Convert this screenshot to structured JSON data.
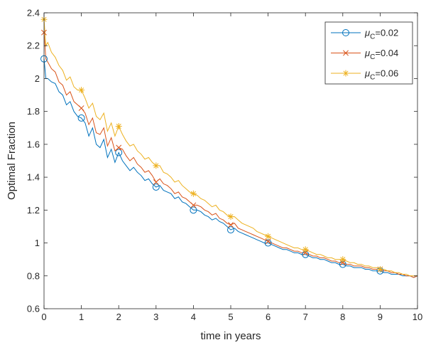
{
  "chart_data": {
    "type": "line",
    "title": "",
    "xlabel": "time in years",
    "ylabel": "Optimal Fraction",
    "xlim": [
      0,
      10
    ],
    "ylim": [
      0.6,
      2.4
    ],
    "x_ticks": [
      0,
      1,
      2,
      3,
      4,
      5,
      6,
      7,
      8,
      9,
      10
    ],
    "y_ticks": [
      "0.6",
      "0.8",
      "1",
      "1.2",
      "1.4",
      "1.6",
      "1.8",
      "2",
      "2.2",
      "2.4"
    ],
    "grid": false,
    "legend_position": "top-right",
    "series": [
      {
        "name": "μC=0.02",
        "legend_mu": "μ",
        "legend_sub": "C",
        "legend_value": "=0.02",
        "color": "#0072BD",
        "marker": "circle",
        "x": [
          0,
          0.05,
          0.1,
          0.2,
          0.3,
          0.4,
          0.5,
          0.6,
          0.7,
          0.8,
          0.9,
          1,
          1.1,
          1.2,
          1.3,
          1.4,
          1.5,
          1.6,
          1.7,
          1.8,
          1.9,
          2,
          2.1,
          2.2,
          2.3,
          2.4,
          2.5,
          2.6,
          2.7,
          2.8,
          2.9,
          3,
          3.1,
          3.2,
          3.3,
          3.4,
          3.5,
          3.6,
          3.7,
          3.8,
          3.9,
          4,
          4.1,
          4.2,
          4.3,
          4.4,
          4.5,
          4.6,
          4.7,
          4.8,
          4.9,
          5,
          5.1,
          5.2,
          5.3,
          5.4,
          5.5,
          5.6,
          5.7,
          5.8,
          5.9,
          6,
          6.1,
          6.2,
          6.3,
          6.4,
          6.5,
          6.6,
          6.7,
          6.8,
          6.9,
          7,
          7.1,
          7.2,
          7.3,
          7.4,
          7.5,
          7.6,
          7.7,
          7.8,
          7.9,
          8,
          8.1,
          8.2,
          8.3,
          8.4,
          8.5,
          8.6,
          8.7,
          8.8,
          8.9,
          9,
          9.1,
          9.2,
          9.3,
          9.4,
          9.5,
          9.6,
          9.7,
          9.8,
          9.9,
          10
        ],
        "y": [
          2.12,
          2.0,
          2.0,
          1.98,
          1.97,
          1.92,
          1.9,
          1.84,
          1.86,
          1.8,
          1.77,
          1.76,
          1.73,
          1.65,
          1.7,
          1.6,
          1.58,
          1.63,
          1.52,
          1.57,
          1.49,
          1.55,
          1.5,
          1.47,
          1.44,
          1.46,
          1.43,
          1.41,
          1.38,
          1.39,
          1.36,
          1.34,
          1.35,
          1.32,
          1.31,
          1.3,
          1.27,
          1.28,
          1.25,
          1.24,
          1.22,
          1.2,
          1.2,
          1.19,
          1.17,
          1.16,
          1.14,
          1.15,
          1.13,
          1.12,
          1.1,
          1.08,
          1.09,
          1.07,
          1.06,
          1.05,
          1.04,
          1.03,
          1.02,
          1.01,
          1.0,
          1.0,
          0.99,
          0.98,
          0.97,
          0.96,
          0.96,
          0.95,
          0.94,
          0.94,
          0.93,
          0.93,
          0.92,
          0.91,
          0.91,
          0.9,
          0.9,
          0.89,
          0.88,
          0.88,
          0.87,
          0.87,
          0.86,
          0.86,
          0.85,
          0.85,
          0.85,
          0.84,
          0.84,
          0.83,
          0.83,
          0.83,
          0.82,
          0.82,
          0.81,
          0.81,
          0.81,
          0.8,
          0.8,
          0.8,
          0.79,
          0.8
        ]
      },
      {
        "name": "μC=0.04",
        "legend_mu": "μ",
        "legend_sub": "C",
        "legend_value": "=0.04",
        "color": "#D95319",
        "marker": "x",
        "x": [
          0,
          0.05,
          0.1,
          0.2,
          0.3,
          0.4,
          0.5,
          0.6,
          0.7,
          0.8,
          0.9,
          1,
          1.1,
          1.2,
          1.3,
          1.4,
          1.5,
          1.6,
          1.7,
          1.8,
          1.9,
          2,
          2.1,
          2.2,
          2.3,
          2.4,
          2.5,
          2.6,
          2.7,
          2.8,
          2.9,
          3,
          3.1,
          3.2,
          3.3,
          3.4,
          3.5,
          3.6,
          3.7,
          3.8,
          3.9,
          4,
          4.1,
          4.2,
          4.3,
          4.4,
          4.5,
          4.6,
          4.7,
          4.8,
          4.9,
          5,
          5.1,
          5.2,
          5.3,
          5.4,
          5.5,
          5.6,
          5.7,
          5.8,
          5.9,
          6,
          6.1,
          6.2,
          6.3,
          6.4,
          6.5,
          6.6,
          6.7,
          6.8,
          6.9,
          7,
          7.1,
          7.2,
          7.3,
          7.4,
          7.5,
          7.6,
          7.7,
          7.8,
          7.9,
          8,
          8.1,
          8.2,
          8.3,
          8.4,
          8.5,
          8.6,
          8.7,
          8.8,
          8.9,
          9,
          9.1,
          9.2,
          9.3,
          9.4,
          9.5,
          9.6,
          9.7,
          9.8,
          9.9,
          10
        ],
        "y": [
          2.28,
          2.12,
          2.1,
          2.06,
          2.04,
          1.98,
          1.96,
          1.9,
          1.92,
          1.86,
          1.84,
          1.82,
          1.79,
          1.72,
          1.76,
          1.67,
          1.66,
          1.7,
          1.59,
          1.64,
          1.56,
          1.58,
          1.57,
          1.53,
          1.5,
          1.52,
          1.48,
          1.46,
          1.43,
          1.44,
          1.41,
          1.37,
          1.39,
          1.36,
          1.35,
          1.33,
          1.3,
          1.31,
          1.28,
          1.27,
          1.25,
          1.23,
          1.23,
          1.22,
          1.2,
          1.19,
          1.17,
          1.18,
          1.15,
          1.14,
          1.12,
          1.11,
          1.12,
          1.09,
          1.08,
          1.07,
          1.06,
          1.05,
          1.04,
          1.03,
          1.02,
          1.01,
          1.0,
          0.99,
          0.98,
          0.97,
          0.97,
          0.96,
          0.95,
          0.95,
          0.94,
          0.94,
          0.93,
          0.92,
          0.92,
          0.91,
          0.91,
          0.9,
          0.89,
          0.89,
          0.88,
          0.88,
          0.87,
          0.87,
          0.86,
          0.86,
          0.86,
          0.85,
          0.85,
          0.84,
          0.84,
          0.84,
          0.83,
          0.83,
          0.82,
          0.82,
          0.81,
          0.81,
          0.8,
          0.8,
          0.79,
          0.8
        ]
      },
      {
        "name": "μC=0.06",
        "legend_mu": "μ",
        "legend_sub": "C",
        "legend_value": "=0.06",
        "color": "#EDB120",
        "marker": "asterisk",
        "x": [
          0,
          0.05,
          0.1,
          0.2,
          0.3,
          0.4,
          0.5,
          0.6,
          0.7,
          0.8,
          0.9,
          1,
          1.1,
          1.2,
          1.3,
          1.4,
          1.5,
          1.6,
          1.7,
          1.8,
          1.9,
          2,
          2.1,
          2.2,
          2.3,
          2.4,
          2.5,
          2.6,
          2.7,
          2.8,
          2.9,
          3,
          3.1,
          3.2,
          3.3,
          3.4,
          3.5,
          3.6,
          3.7,
          3.8,
          3.9,
          4,
          4.1,
          4.2,
          4.3,
          4.4,
          4.5,
          4.6,
          4.7,
          4.8,
          4.9,
          5,
          5.1,
          5.2,
          5.3,
          5.4,
          5.5,
          5.6,
          5.7,
          5.8,
          5.9,
          6,
          6.1,
          6.2,
          6.3,
          6.4,
          6.5,
          6.6,
          6.7,
          6.8,
          6.9,
          7,
          7.1,
          7.2,
          7.3,
          7.4,
          7.5,
          7.6,
          7.7,
          7.8,
          7.9,
          8,
          8.1,
          8.2,
          8.3,
          8.4,
          8.5,
          8.6,
          8.7,
          8.8,
          8.9,
          9,
          9.1,
          9.2,
          9.3,
          9.4,
          9.5,
          9.6,
          9.7,
          9.8,
          9.9,
          10
        ],
        "y": [
          2.36,
          2.2,
          2.22,
          2.16,
          2.13,
          2.08,
          2.05,
          1.99,
          2.01,
          1.95,
          1.93,
          1.93,
          1.88,
          1.82,
          1.85,
          1.77,
          1.75,
          1.79,
          1.68,
          1.73,
          1.65,
          1.71,
          1.66,
          1.62,
          1.59,
          1.6,
          1.56,
          1.54,
          1.51,
          1.52,
          1.49,
          1.47,
          1.47,
          1.43,
          1.42,
          1.4,
          1.37,
          1.38,
          1.35,
          1.33,
          1.31,
          1.3,
          1.29,
          1.27,
          1.26,
          1.24,
          1.22,
          1.23,
          1.2,
          1.19,
          1.17,
          1.16,
          1.16,
          1.14,
          1.12,
          1.11,
          1.1,
          1.09,
          1.07,
          1.06,
          1.05,
          1.04,
          1.03,
          1.02,
          1.01,
          1.0,
          0.99,
          0.98,
          0.97,
          0.97,
          0.96,
          0.96,
          0.95,
          0.94,
          0.93,
          0.93,
          0.92,
          0.91,
          0.91,
          0.9,
          0.9,
          0.9,
          0.89,
          0.88,
          0.88,
          0.87,
          0.87,
          0.86,
          0.86,
          0.85,
          0.85,
          0.84,
          0.84,
          0.83,
          0.83,
          0.82,
          0.82,
          0.81,
          0.81,
          0.8,
          0.8,
          0.8
        ]
      }
    ],
    "marker_x": [
      0,
      1,
      2,
      3,
      4,
      5,
      6,
      7,
      8,
      9
    ]
  }
}
